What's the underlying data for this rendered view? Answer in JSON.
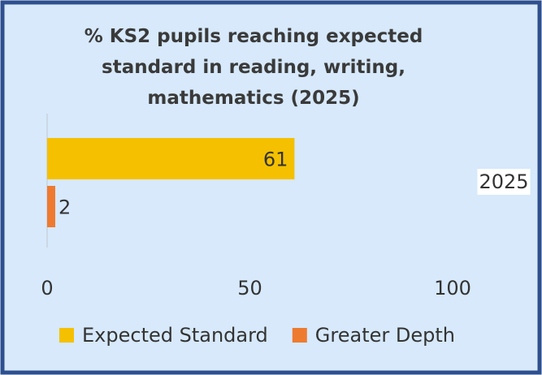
{
  "chart_data": {
    "type": "bar",
    "orientation": "horizontal",
    "title": "% KS2 pupils reaching expected standard in reading, writing, mathematics (2025)",
    "categories": [
      "2025"
    ],
    "series": [
      {
        "name": "Expected Standard",
        "color": "#f5c000",
        "values": [
          61
        ]
      },
      {
        "name": "Greater Depth",
        "color": "#ee7a30",
        "values": [
          2
        ]
      }
    ],
    "xlim": [
      0,
      100
    ],
    "xticks": [
      0,
      50,
      100
    ],
    "grid": false,
    "legend": "bottom"
  }
}
